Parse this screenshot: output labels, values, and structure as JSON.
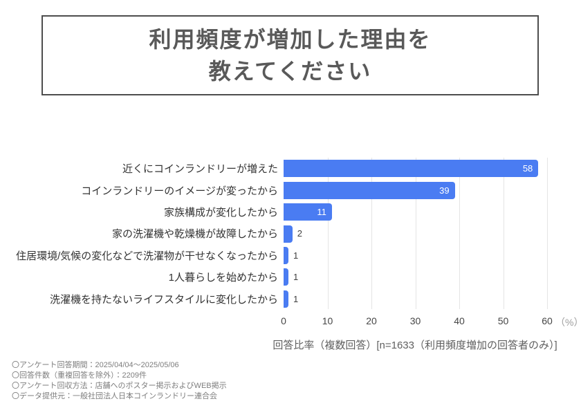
{
  "title": {
    "line1": "利用頻度が増加した理由を",
    "line2": "教えてください"
  },
  "chart_data": {
    "type": "bar",
    "orientation": "horizontal",
    "title": "利用頻度が増加した理由を教えてください",
    "categories": [
      "近くにコインランドリーが増えた",
      "コインランドリーのイメージが変ったから",
      "家族構成が変化したから",
      "家の洗濯機や乾燥機が故障したから",
      "住居環境/気候の変化などで洗濯物が干せなくなったから",
      "1人暮らしを始めたから",
      "洗濯機を持たないライフスタイルに変化したから"
    ],
    "values": [
      58,
      39,
      11,
      2,
      1,
      1,
      1
    ],
    "x_ticks": [
      0,
      10,
      20,
      30,
      40,
      50,
      60
    ],
    "xlim": [
      0,
      60
    ],
    "unit_label": "（%）",
    "grid": true,
    "legend": "none",
    "bar_color": "#4a7cf2",
    "value_label_inside_color": "#ffffff",
    "value_label_outside_color": "#404040",
    "caption": "回答比率（複数回答）[n=1633（利用頻度増加の回答者のみ）]"
  },
  "footnotes": [
    "〇アンケート回答期間：2025/04/04〜2025/05/06",
    "〇回答件数（重複回答を除外）：2209件",
    "〇アンケート回収方法：店舗へのポスター掲示およびWEB掲示",
    "〇データ提供元：一般社団法人日本コインランドリー連合会"
  ]
}
